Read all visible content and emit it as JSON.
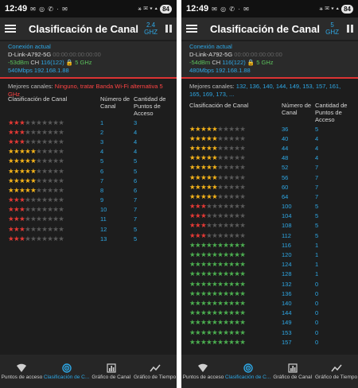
{
  "screens": {
    "left": {
      "status": {
        "time": "12:49",
        "icons": "✉ ◎ ✆ · ✉",
        "sys": "⚹ ✉ ▾ ▴",
        "battery": "84"
      },
      "appbar": {
        "title": "Clasificación de Canal",
        "band": "2.4\nGHZ"
      },
      "connection": {
        "label": "Conexión actual",
        "ssid": "D-Link-A792-5G",
        "mac": "00:00:00:00:00:00",
        "signal": "-53dBm",
        "ch_label": "CH",
        "channel": "116(122)",
        "extra": "5 GHz",
        "speed": "540Mbps 192.168.1.88"
      },
      "best": {
        "label": "Mejores canales:",
        "value": "Ninguno, tratar Banda Wi-Fi alternativa 5 GHz",
        "value_color": "red"
      },
      "headers": {
        "rating": "Clasificación de Canal",
        "channel": "Número de Canal",
        "ap_count": "Cantidad de Puntos de Acceso"
      },
      "rows": [
        {
          "stars": 3,
          "color": "#e53935",
          "channel": "1",
          "ap": "3"
        },
        {
          "stars": 3,
          "color": "#e53935",
          "channel": "2",
          "ap": "4"
        },
        {
          "stars": 3,
          "color": "#e53935",
          "channel": "3",
          "ap": "4"
        },
        {
          "stars": 5,
          "color": "#f5b31a",
          "channel": "4",
          "ap": "4"
        },
        {
          "stars": 5,
          "color": "#f5b31a",
          "channel": "5",
          "ap": "5"
        },
        {
          "stars": 5,
          "color": "#f5b31a",
          "channel": "6",
          "ap": "5"
        },
        {
          "stars": 5,
          "color": "#f5b31a",
          "channel": "7",
          "ap": "6"
        },
        {
          "stars": 5,
          "color": "#f5b31a",
          "channel": "8",
          "ap": "6"
        },
        {
          "stars": 3,
          "color": "#e53935",
          "channel": "9",
          "ap": "7"
        },
        {
          "stars": 3,
          "color": "#e53935",
          "channel": "10",
          "ap": "7"
        },
        {
          "stars": 3,
          "color": "#e53935",
          "channel": "11",
          "ap": "7"
        },
        {
          "stars": 3,
          "color": "#e53935",
          "channel": "12",
          "ap": "5"
        },
        {
          "stars": 3,
          "color": "#e53935",
          "channel": "13",
          "ap": "5"
        }
      ]
    },
    "right": {
      "status": {
        "time": "12:49",
        "icons": "✉ ◎ ✆ · ✉",
        "sys": "⚹ ✉ ▾ ▴",
        "battery": "84"
      },
      "appbar": {
        "title": "Clasificación de Canal",
        "band": "5\nGHZ"
      },
      "connection": {
        "label": "Conexión actual",
        "ssid": "D-Link-A792-5G",
        "mac": "00:00:00:00:00:00",
        "signal": "-54dBm",
        "ch_label": "CH",
        "channel": "116(122)",
        "extra": "5 GHz",
        "speed": "480Mbps 192.168.1.88"
      },
      "best": {
        "label": "Mejores canales:",
        "value": "132, 136, 140, 144, 149, 153, 157, 161, 165, 169, 173, ...",
        "value_color": "blue"
      },
      "headers": {
        "rating": "Clasificación de Canal",
        "channel": "Número de Canal",
        "ap_count": "Cantidad de Puntos de Acceso"
      },
      "rows": [
        {
          "stars": 5,
          "color": "#f5b31a",
          "channel": "36",
          "ap": "5"
        },
        {
          "stars": 5,
          "color": "#f5b31a",
          "channel": "40",
          "ap": "4"
        },
        {
          "stars": 5,
          "color": "#f5b31a",
          "channel": "44",
          "ap": "4"
        },
        {
          "stars": 5,
          "color": "#f5b31a",
          "channel": "48",
          "ap": "4"
        },
        {
          "stars": 5,
          "color": "#f5b31a",
          "channel": "52",
          "ap": "7"
        },
        {
          "stars": 5,
          "color": "#f5b31a",
          "channel": "56",
          "ap": "7"
        },
        {
          "stars": 5,
          "color": "#f5b31a",
          "channel": "60",
          "ap": "7"
        },
        {
          "stars": 5,
          "color": "#f5b31a",
          "channel": "64",
          "ap": "7"
        },
        {
          "stars": 3,
          "color": "#e53935",
          "channel": "100",
          "ap": "5"
        },
        {
          "stars": 3,
          "color": "#e53935",
          "channel": "104",
          "ap": "5"
        },
        {
          "stars": 3,
          "color": "#e53935",
          "channel": "108",
          "ap": "5"
        },
        {
          "stars": 3,
          "color": "#e53935",
          "channel": "112",
          "ap": "5"
        },
        {
          "stars": 10,
          "color": "#4caf50",
          "channel": "116",
          "ap": "1"
        },
        {
          "stars": 10,
          "color": "#4caf50",
          "channel": "120",
          "ap": "1"
        },
        {
          "stars": 10,
          "color": "#4caf50",
          "channel": "124",
          "ap": "1"
        },
        {
          "stars": 10,
          "color": "#4caf50",
          "channel": "128",
          "ap": "1"
        },
        {
          "stars": 10,
          "color": "#4caf50",
          "channel": "132",
          "ap": "0"
        },
        {
          "stars": 10,
          "color": "#4caf50",
          "channel": "136",
          "ap": "0"
        },
        {
          "stars": 10,
          "color": "#4caf50",
          "channel": "140",
          "ap": "0"
        },
        {
          "stars": 10,
          "color": "#4caf50",
          "channel": "144",
          "ap": "0"
        },
        {
          "stars": 10,
          "color": "#4caf50",
          "channel": "149",
          "ap": "0"
        },
        {
          "stars": 10,
          "color": "#4caf50",
          "channel": "153",
          "ap": "0"
        },
        {
          "stars": 10,
          "color": "#4caf50",
          "channel": "157",
          "ap": "0"
        }
      ]
    }
  },
  "bottom_nav": [
    {
      "label": "Puntos de acceso",
      "icon": "wifi-icon",
      "active": false
    },
    {
      "label": "Clasificación de C...",
      "icon": "radar-icon",
      "active": true
    },
    {
      "label": "Gráfico de Canal",
      "icon": "bar-chart-icon",
      "active": false
    },
    {
      "label": "Gráfico de Tiempo",
      "icon": "line-chart-icon",
      "active": false
    }
  ],
  "colors": {
    "accent": "#2ea8e6",
    "star_off": "#5a5a5a",
    "background": "#1d1d1d"
  }
}
